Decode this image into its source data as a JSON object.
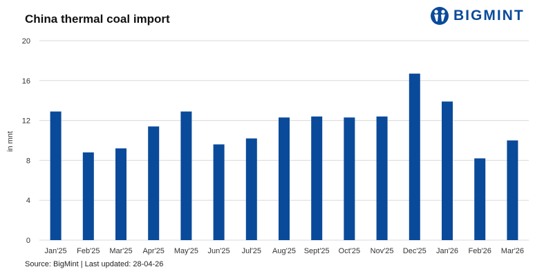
{
  "header": {
    "title": "China thermal coal import",
    "brand": "BIGMINT"
  },
  "footer": {
    "source": "Source: BigMint | Last updated: 28-04-26"
  },
  "colors": {
    "bar": "#0a4a9a",
    "grid": "#d9d9d9",
    "brand": "#0a4a9a"
  },
  "icons": {
    "logo": "people-in-circle-icon"
  },
  "chart_data": {
    "type": "bar",
    "title": "China thermal coal import",
    "ylabel": "in mnt",
    "xlabel": "",
    "ylim": [
      0,
      20
    ],
    "yticks": [
      0,
      4,
      8,
      12,
      16,
      20
    ],
    "grid": true,
    "categories": [
      "Jan'25",
      "Feb'25",
      "Mar'25",
      "Apr'25",
      "May'25",
      "Jun'25",
      "Jul'25",
      "Aug'25",
      "Sept'25",
      "Oct'25",
      "Nov'25",
      "Dec'25",
      "Jan'26",
      "Feb'26",
      "Mar'26"
    ],
    "values": [
      12.9,
      8.8,
      9.2,
      11.4,
      12.9,
      9.6,
      10.2,
      12.3,
      12.4,
      12.3,
      12.4,
      16.7,
      13.9,
      8.2,
      10.0
    ]
  }
}
